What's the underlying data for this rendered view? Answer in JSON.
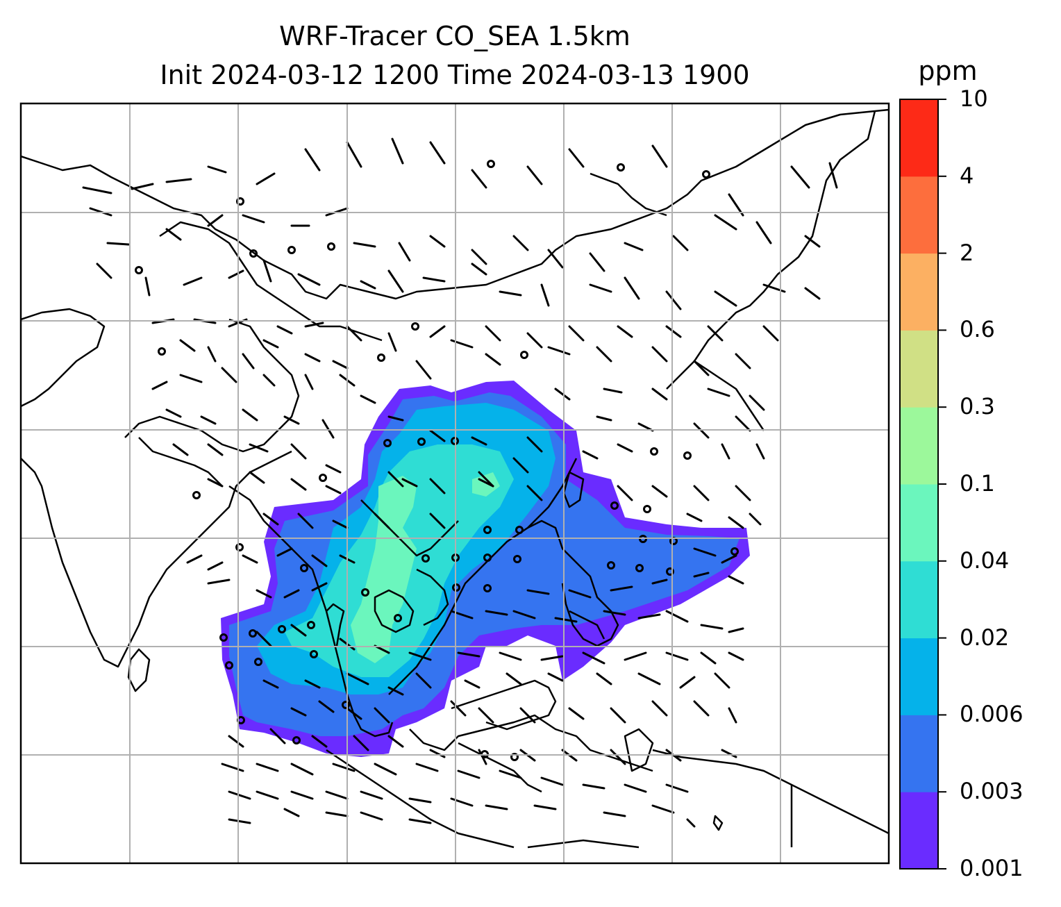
{
  "title": "WRF-Tracer CO_SEA 1.5km",
  "subtitle": "Init 2024-03-12 1200 Time 2024-03-13 1900",
  "colorbar": {
    "unit": "ppm",
    "levels": [
      "0.001",
      "0.003",
      "0.006",
      "0.02",
      "0.04",
      "0.1",
      "0.3",
      "0.6",
      "2",
      "4",
      "10"
    ],
    "colors": [
      "#6a2cff",
      "#3574f0",
      "#05b2ea",
      "#2fddd4",
      "#6bf6bd",
      "#9cf89b",
      "#d0e085",
      "#fcb062",
      "#fd6e3d",
      "#fd2a17"
    ]
  },
  "map": {
    "background": "#ffffff",
    "grid_color": "#b0b0b0",
    "coastline_color": "#000000",
    "plume_levels_present": [
      "0.001",
      "0.003",
      "0.006",
      "0.02",
      "0.04"
    ]
  }
}
